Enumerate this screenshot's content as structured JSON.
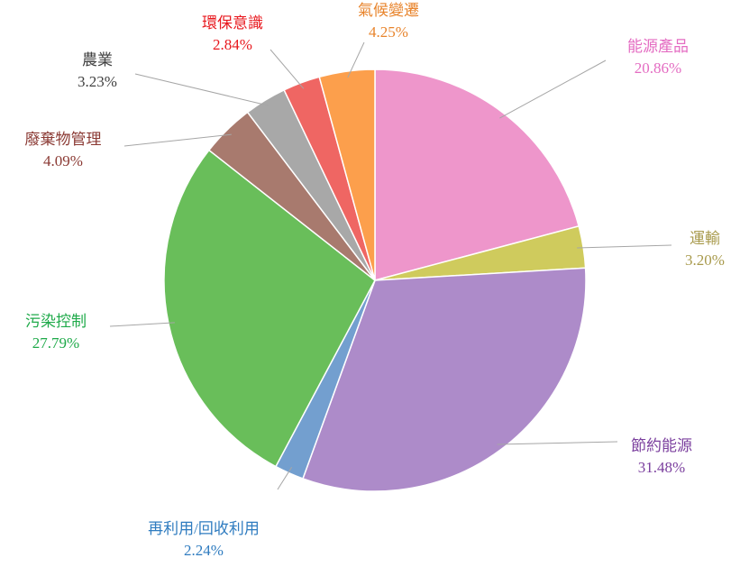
{
  "chart_data": {
    "type": "pie",
    "title": "",
    "start_angle_deg": 0,
    "direction": "clockwise",
    "slices": [
      {
        "label": "能源產品",
        "value": 20.86,
        "value_label": "20.86%",
        "color": "#ee96cb",
        "label_color": "#e46cc2"
      },
      {
        "label": "運輸",
        "value": 3.2,
        "value_label": "3.20%",
        "color": "#cfcb5d",
        "label_color": "#a89a4c"
      },
      {
        "label": "節約能源",
        "value": 31.48,
        "value_label": "31.48%",
        "color": "#ad8bc9",
        "label_color": "#7b3f9e"
      },
      {
        "label": "再利用/回收利用",
        "value": 2.24,
        "value_label": "2.24%",
        "color": "#739fcf",
        "label_color": "#2f7cc0"
      },
      {
        "label": "污染控制",
        "value": 27.79,
        "value_label": "27.79%",
        "color": "#69be5a",
        "label_color": "#1faa4a"
      },
      {
        "label": "廢棄物管理",
        "value": 4.09,
        "value_label": "4.09%",
        "color": "#a87a6e",
        "label_color": "#8b3a34"
      },
      {
        "label": "農業",
        "value": 3.23,
        "value_label": "3.23%",
        "color": "#a8a8a8",
        "label_color": "#404040"
      },
      {
        "label": "環保意識",
        "value": 2.84,
        "value_label": "2.84%",
        "color": "#ef6663",
        "label_color": "#e8181e"
      },
      {
        "label": "氣候變遷",
        "value": 4.25,
        "value_label": "4.25%",
        "color": "#fc9f4c",
        "label_color": "#e8842c"
      }
    ]
  }
}
